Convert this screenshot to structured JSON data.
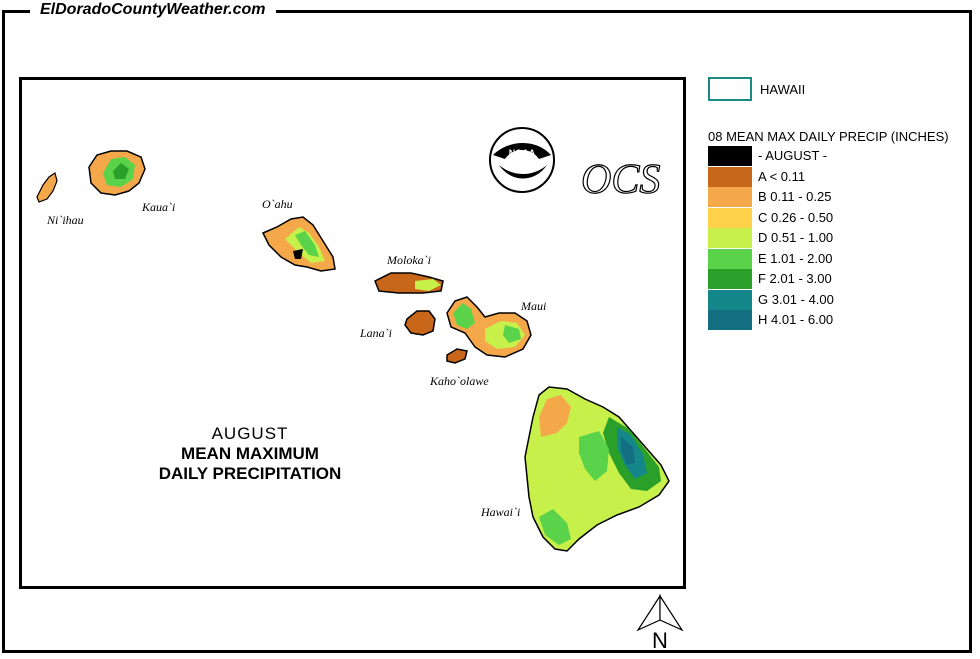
{
  "site": {
    "title": "ElDoradoCountyWeather.com"
  },
  "map": {
    "title_line1": "AUGUST",
    "title_line2": "MEAN MAXIMUM",
    "title_line3": "DAILY PRECIPITATION",
    "islands": {
      "niihau": "Ni`ihau",
      "kauai": "Kaua`i",
      "oahu": "O`ahu",
      "molokai": "Moloka`i",
      "lanai": "Lana`i",
      "maui": "Maui",
      "kahoolawe": "Kaho`olawe",
      "hawaii": "Hawai`i"
    },
    "logos": {
      "noaa": "NOAA",
      "ocs": "OCS"
    },
    "north_label": "N"
  },
  "legend": {
    "hawaii_key_label": "HAWAII",
    "title": "08 MEAN MAX DAILY PRECIP (INCHES)",
    "entries": [
      {
        "label": "- AUGUST -",
        "color": "#000000"
      },
      {
        "label": "A < 0.11",
        "color": "#c8671a"
      },
      {
        "label": "B 0.11 - 0.25",
        "color": "#f5a84a"
      },
      {
        "label": "C 0.26 - 0.50",
        "color": "#ffd24a"
      },
      {
        "label": "D 0.51 - 1.00",
        "color": "#c8f04a"
      },
      {
        "label": "E 1.01 - 2.00",
        "color": "#5ad24a"
      },
      {
        "label": "F 2.01 - 3.00",
        "color": "#2aa02a"
      },
      {
        "label": "G 3.01 - 4.00",
        "color": "#14878a"
      },
      {
        "label": "H 4.01 - 6.00",
        "color": "#146e82"
      }
    ]
  }
}
